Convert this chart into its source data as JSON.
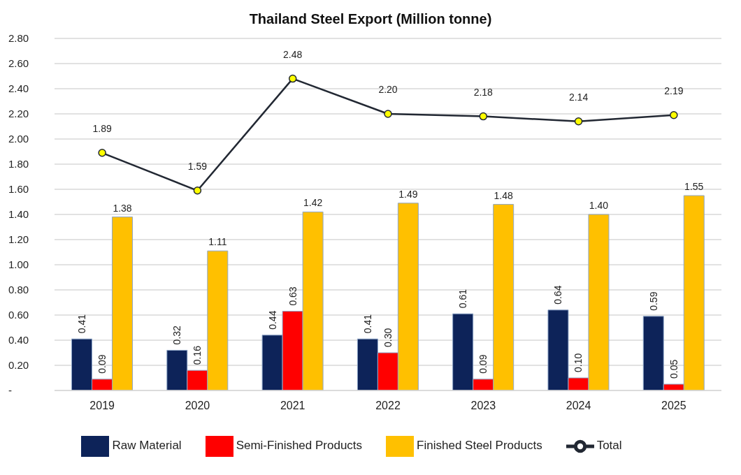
{
  "chart_data": {
    "type": "bar",
    "title": "Thailand Steel Export (Million tonne)",
    "categories": [
      "2019",
      "2020",
      "2021",
      "2022",
      "2023",
      "2024",
      "2025"
    ],
    "series": [
      {
        "name": "Raw Material",
        "color": "#0d2359",
        "values": [
          0.41,
          0.32,
          0.44,
          0.41,
          0.61,
          0.64,
          0.59
        ],
        "value_labels": [
          "0.41",
          "0.32",
          "0.44",
          "0.41",
          "0.61",
          "0.64",
          "0.59"
        ]
      },
      {
        "name": "Semi-Finished Products",
        "color": "#ff0000",
        "values": [
          0.09,
          0.16,
          0.63,
          0.3,
          0.09,
          0.1,
          0.05
        ],
        "value_labels": [
          "0.09",
          "0.16",
          "0.63",
          "0.30",
          "0.09",
          "0.10",
          "0.05"
        ]
      },
      {
        "name": "Finished Steel Products",
        "color": "#ffc000",
        "values": [
          1.38,
          1.11,
          1.42,
          1.49,
          1.48,
          1.4,
          1.55
        ],
        "value_labels": [
          "1.38",
          "1.11",
          "1.42",
          "1.49",
          "1.48",
          "1.40",
          "1.55"
        ]
      },
      {
        "name": "Total",
        "type": "line",
        "color": "#222833",
        "marker": "circle",
        "values": [
          1.89,
          1.59,
          2.48,
          2.2,
          2.18,
          2.14,
          2.19
        ],
        "value_labels": [
          "1.89",
          "1.59",
          "2.48",
          "2.20",
          "2.18",
          "2.14",
          "2.19"
        ]
      }
    ],
    "ylim": [
      0,
      2.8
    ],
    "yticks": [
      {
        "value": 0,
        "label": "-"
      },
      {
        "value": 0.2,
        "label": "0.20"
      },
      {
        "value": 0.4,
        "label": "0.40"
      },
      {
        "value": 0.6,
        "label": "0.60"
      },
      {
        "value": 0.8,
        "label": "0.80"
      },
      {
        "value": 1.0,
        "label": "1.00"
      },
      {
        "value": 1.2,
        "label": "1.20"
      },
      {
        "value": 1.4,
        "label": "1.40"
      },
      {
        "value": 1.6,
        "label": "1.60"
      },
      {
        "value": 1.8,
        "label": "1.80"
      },
      {
        "value": 2.0,
        "label": "2.00"
      },
      {
        "value": 2.2,
        "label": "2.20"
      },
      {
        "value": 2.4,
        "label": "2.40"
      },
      {
        "value": 2.6,
        "label": "2.60"
      },
      {
        "value": 2.8,
        "label": "2.80"
      }
    ],
    "grid": "y",
    "legend": "bottom"
  }
}
